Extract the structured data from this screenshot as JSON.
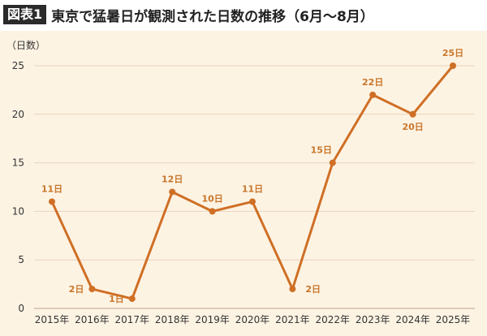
{
  "header": {
    "tag": "図表1",
    "title": "東京で猛暑日が観測された日数の推移（6月〜8月）"
  },
  "colors": {
    "line": "#cf6f25",
    "label": "#c9762a",
    "panel": "#fdf3e3",
    "grid": "#e7d5bd"
  },
  "chart_data": {
    "type": "line",
    "title": "東京で猛暑日が観測された日数の推移（6月〜8月）",
    "ylabel": "（日数）",
    "xlabel": "",
    "categories": [
      "2015年",
      "2016年",
      "2017年",
      "2018年",
      "2019年",
      "2020年",
      "2021年",
      "2022年",
      "2023年",
      "2024年",
      "2025年"
    ],
    "series": [
      {
        "values": [
          11,
          2,
          1,
          12,
          10,
          11,
          2,
          15,
          22,
          20,
          25
        ],
        "labels": [
          "11日",
          "2日",
          "1日",
          "12日",
          "10日",
          "11日",
          "2日",
          "15日",
          "22日",
          "20日",
          "25日"
        ]
      }
    ],
    "ylim": [
      0,
      25
    ],
    "yticks": [
      0,
      5,
      10,
      15,
      20,
      25
    ],
    "grid": true,
    "legend": "none"
  }
}
